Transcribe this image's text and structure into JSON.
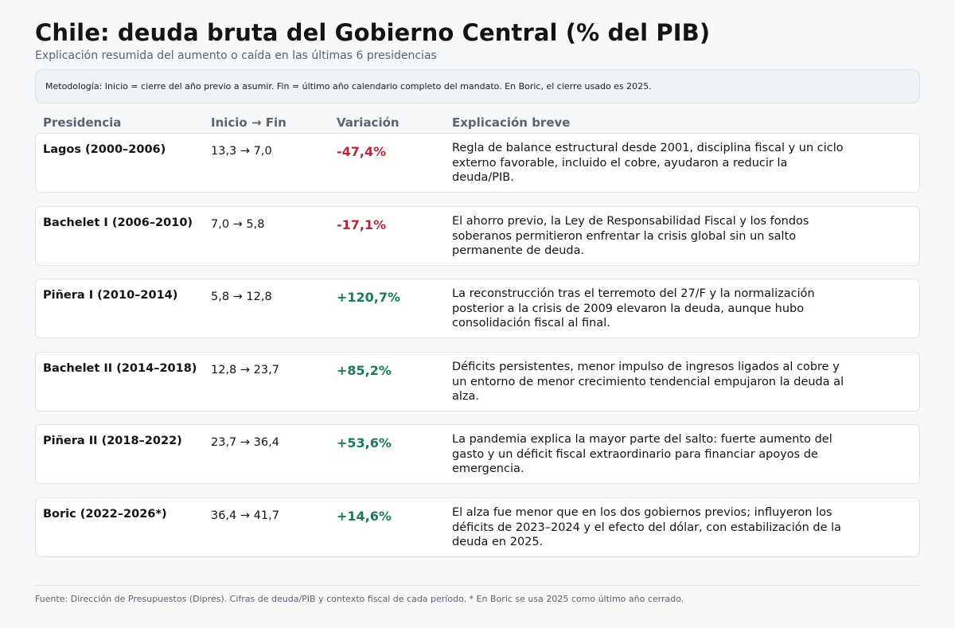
{
  "title": "Chile: deuda bruta del Gobierno Central (% del PIB)",
  "subtitle": "Explicación resumida del aumento o caída en las últimas 6 presidencias",
  "methodology": "Metodología: Inicio = cierre del año previo a asumir. Fin = último año calendario completo del mandato. En Boric, el cierre usado es 2025.",
  "headers": {
    "presidency": "Presidencia",
    "range": "Inicio → Fin",
    "change": "Variación",
    "explanation": "Explicación breve"
  },
  "rows": [
    {
      "presidency": "Lagos (2000–2006)",
      "range": "13,3 → 7,0",
      "change": "-47,4%",
      "direction": "down",
      "explanation": "Regla de balance estructural desde 2001, disciplina fiscal y un ciclo externo favorable, incluido el cobre, ayudaron a reducir la deuda/PIB."
    },
    {
      "presidency": "Bachelet I (2006–2010)",
      "range": "7,0 → 5,8",
      "change": "-17,1%",
      "direction": "down",
      "explanation": "El ahorro previo, la Ley de Responsabilidad Fiscal y los fondos soberanos permitieron enfrentar la crisis global sin un salto permanente de deuda."
    },
    {
      "presidency": "Piñera I (2010–2014)",
      "range": "5,8 → 12,8",
      "change": "+120,7%",
      "direction": "up",
      "explanation": "La reconstrucción tras el terremoto del 27/F y la normalización posterior a la crisis de 2009 elevaron la deuda, aunque hubo consolidación fiscal al final."
    },
    {
      "presidency": "Bachelet II (2014–2018)",
      "range": "12,8 → 23,7",
      "change": "+85,2%",
      "direction": "up",
      "explanation": "Déficits persistentes, menor impulso de ingresos ligados al cobre y un entorno de menor crecimiento tendencial empujaron la deuda al alza."
    },
    {
      "presidency": "Piñera II (2018–2022)",
      "range": "23,7 → 36,4",
      "change": "+53,6%",
      "direction": "up",
      "explanation": "La pandemia explica la mayor parte del salto: fuerte aumento del gasto y un déficit fiscal extraordinario para financiar apoyos de emergencia."
    },
    {
      "presidency": "Boric (2022–2026*)",
      "range": "36,4 → 41,7",
      "change": "+14,6%",
      "direction": "up",
      "explanation": "El alza fue menor que en los dos gobiernos previos; influyeron los déficits de 2023–2024 y el efecto del dólar, con estabilización de la deuda en 2025."
    }
  ],
  "footer": "Fuente: Dirección de Presupuestos (Dipres). Cifras de deuda/PIB y contexto fiscal de cada período. * En Boric se usa 2025 como último año cerrado.",
  "colors": {
    "decrease": "#b02a3a",
    "increase": "#1e7a55"
  }
}
